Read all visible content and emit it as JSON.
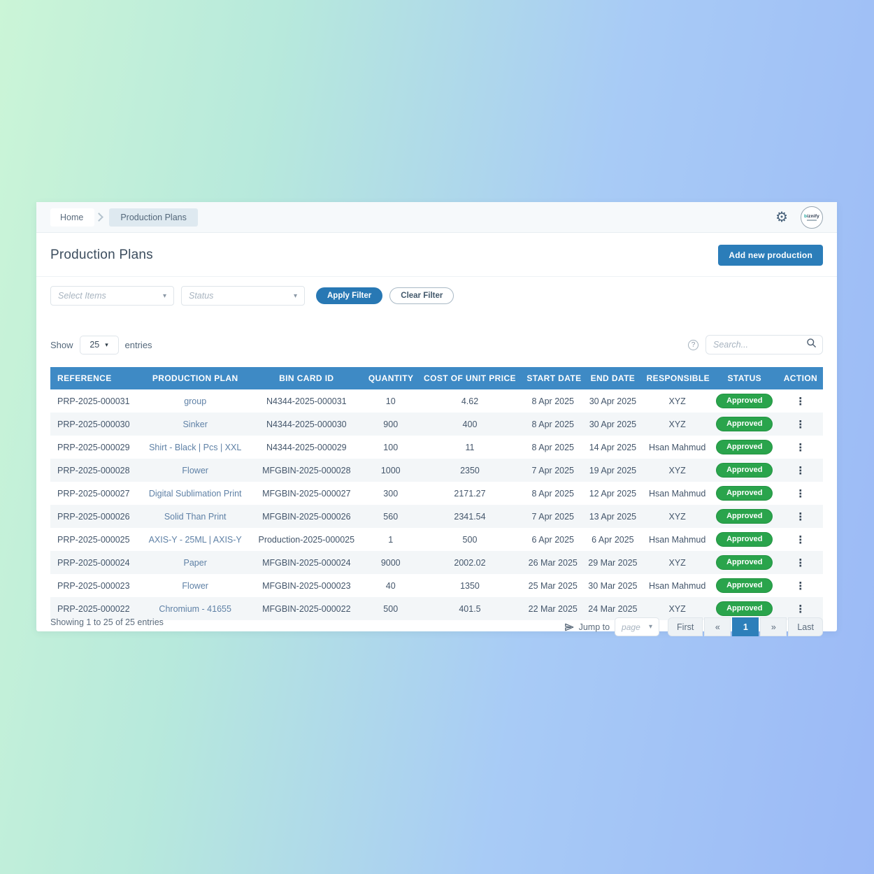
{
  "breadcrumb": {
    "home": "Home",
    "current": "Production Plans"
  },
  "header": {
    "title": "Production Plans",
    "add_button": "Add new production",
    "logo_first": "b",
    "logo_rest": "iznify"
  },
  "filters": {
    "select_items_placeholder": "Select Items",
    "status_placeholder": "Status",
    "apply_label": "Apply Filter",
    "clear_label": "Clear Filter"
  },
  "table_controls": {
    "show_label": "Show",
    "page_size": "25",
    "entries_label": "entries",
    "search_placeholder": "Search..."
  },
  "icons": {
    "gear": "⚙",
    "help": "?",
    "kebab": "⋮",
    "chevron_down": "▾"
  },
  "colors": {
    "header_blue": "#3e8ac5",
    "button_blue": "#2b7db9",
    "badge_green": "#2aa44c",
    "breadcrumb_chip": "#dee9f0"
  },
  "table": {
    "columns": [
      "REFERENCE",
      "PRODUCTION PLAN",
      "BIN CARD ID",
      "QUANTITY",
      "COST OF UNIT PRICE",
      "START DATE",
      "END DATE",
      "RESPONSIBLE",
      "STATUS",
      "ACTION"
    ],
    "rows": [
      {
        "reference": "PRP-2025-000031",
        "plan": "group",
        "bin_card_id": "N4344-2025-000031",
        "quantity": "10",
        "cost": "4.62",
        "start_date": "8 Apr 2025",
        "end_date": "30 Apr 2025",
        "responsible": "XYZ",
        "status": "Approved"
      },
      {
        "reference": "PRP-2025-000030",
        "plan": "Sinker",
        "bin_card_id": "N4344-2025-000030",
        "quantity": "900",
        "cost": "400",
        "start_date": "8 Apr 2025",
        "end_date": "30 Apr 2025",
        "responsible": "XYZ",
        "status": "Approved"
      },
      {
        "reference": "PRP-2025-000029",
        "plan": "Shirt - Black | Pcs | XXL",
        "bin_card_id": "N4344-2025-000029",
        "quantity": "100",
        "cost": "11",
        "start_date": "8 Apr 2025",
        "end_date": "14 Apr 2025",
        "responsible": "Hsan Mahmud",
        "status": "Approved"
      },
      {
        "reference": "PRP-2025-000028",
        "plan": "Flower",
        "bin_card_id": "MFGBIN-2025-000028",
        "quantity": "1000",
        "cost": "2350",
        "start_date": "7 Apr 2025",
        "end_date": "19 Apr 2025",
        "responsible": "XYZ",
        "status": "Approved"
      },
      {
        "reference": "PRP-2025-000027",
        "plan": "Digital Sublimation Print",
        "bin_card_id": "MFGBIN-2025-000027",
        "quantity": "300",
        "cost": "2171.27",
        "start_date": "8 Apr 2025",
        "end_date": "12 Apr 2025",
        "responsible": "Hsan Mahmud",
        "status": "Approved"
      },
      {
        "reference": "PRP-2025-000026",
        "plan": "Solid Than Print",
        "bin_card_id": "MFGBIN-2025-000026",
        "quantity": "560",
        "cost": "2341.54",
        "start_date": "7 Apr 2025",
        "end_date": "13 Apr 2025",
        "responsible": "XYZ",
        "status": "Approved"
      },
      {
        "reference": "PRP-2025-000025",
        "plan": "AXIS-Y - 25ML | AXIS-Y",
        "bin_card_id": "Production-2025-000025",
        "quantity": "1",
        "cost": "500",
        "start_date": "6 Apr 2025",
        "end_date": "6 Apr 2025",
        "responsible": "Hsan Mahmud",
        "status": "Approved"
      },
      {
        "reference": "PRP-2025-000024",
        "plan": "Paper",
        "bin_card_id": "MFGBIN-2025-000024",
        "quantity": "9000",
        "cost": "2002.02",
        "start_date": "26 Mar 2025",
        "end_date": "29 Mar 2025",
        "responsible": "XYZ",
        "status": "Approved"
      },
      {
        "reference": "PRP-2025-000023",
        "plan": "Flower",
        "bin_card_id": "MFGBIN-2025-000023",
        "quantity": "40",
        "cost": "1350",
        "start_date": "25 Mar 2025",
        "end_date": "30 Mar 2025",
        "responsible": "Hsan Mahmud",
        "status": "Approved"
      },
      {
        "reference": "PRP-2025-000022",
        "plan": "Chromium - 41655",
        "bin_card_id": "MFGBIN-2025-000022",
        "quantity": "500",
        "cost": "401.5",
        "start_date": "22 Mar 2025",
        "end_date": "24 Mar 2025",
        "responsible": "XYZ",
        "status": "Approved"
      }
    ]
  },
  "footer": {
    "showing_text": "Showing 1 to 25 of 25 entries",
    "jump_to_label": "Jump to",
    "page_placeholder": "page",
    "pagination": {
      "first": "First",
      "prev": "«",
      "page": "1",
      "next": "»",
      "last": "Last"
    }
  }
}
